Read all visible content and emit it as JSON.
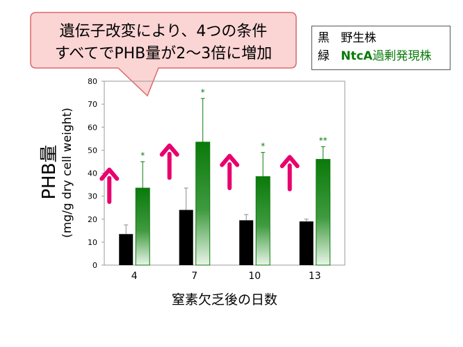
{
  "callout": {
    "line1": "遺伝子改変により、4つの条件",
    "line2": "すべてでPHB量が2～3倍に増加"
  },
  "legend": {
    "black_label": "黒",
    "black_name": "野生株",
    "green_label": "緑",
    "green_strain": "NtcA",
    "green_name": "過剰発現株"
  },
  "colors": {
    "wild": "#000000",
    "overexpress": "#0a7a0a",
    "arrow": "#e8006e",
    "callout_fill": "#fbd4d4",
    "callout_border": "#d96a6a"
  },
  "chart_data": {
    "type": "bar",
    "categories": [
      "4",
      "7",
      "10",
      "13"
    ],
    "xlabel": "窒素欠乏後の日数",
    "ylabel_main": "PHB量",
    "ylabel_unit": "(mg/g dry cell weight)",
    "ylim": [
      0,
      80
    ],
    "yticks": [
      0,
      10,
      20,
      30,
      40,
      50,
      60,
      70,
      80
    ],
    "grid": false,
    "series": [
      {
        "name": "野生株",
        "values": [
          13.5,
          24,
          19.5,
          19
        ],
        "errors": [
          4,
          9.5,
          2.5,
          1
        ]
      },
      {
        "name": "NtcA過剰発現株",
        "values": [
          33.5,
          53.5,
          38.5,
          46
        ],
        "errors": [
          11.5,
          19,
          10.5,
          5.5
        ]
      }
    ],
    "annotations": [
      "*",
      "*",
      "*",
      "**"
    ]
  }
}
